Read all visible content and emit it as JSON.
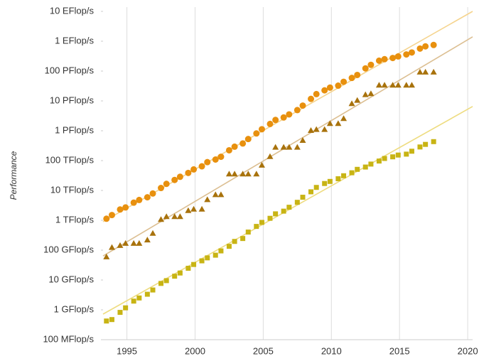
{
  "chart_data": {
    "type": "scatter",
    "log_y": true,
    "grid": "x",
    "ylabel": "Performance",
    "xlim": [
      1993.25,
      2020.36
    ],
    "xticks": [
      1995,
      2000,
      2005,
      2010,
      2015,
      2020
    ],
    "ylim": [
      0.1,
      10000000000
    ],
    "yticks": [
      {
        "value": 0.1,
        "label": "100 MFlop/s"
      },
      {
        "value": 1,
        "label": "1 GFlop/s"
      },
      {
        "value": 10,
        "label": "10 GFlop/s"
      },
      {
        "value": 100,
        "label": "100 GFlop/s"
      },
      {
        "value": 1000,
        "label": "1 TFlop/s"
      },
      {
        "value": 10000,
        "label": "10 TFlop/s"
      },
      {
        "value": 100000,
        "label": "100 TFlop/s"
      },
      {
        "value": 1000000,
        "label": "1 PFlop/s"
      },
      {
        "value": 10000000,
        "label": "10 PFlop/s"
      },
      {
        "value": 100000000,
        "label": "100 PFlop/s"
      },
      {
        "value": 1000000000,
        "label": "1 EFlop/s"
      },
      {
        "value": 10000000000,
        "label": "10 EFlop/s"
      }
    ],
    "x": [
      1993.5,
      1993.9,
      1994.5,
      1994.9,
      1995.5,
      1995.9,
      1996.5,
      1996.9,
      1997.5,
      1997.9,
      1998.5,
      1998.9,
      1999.5,
      1999.9,
      2000.5,
      2000.9,
      2001.5,
      2001.9,
      2002.5,
      2002.9,
      2003.5,
      2003.9,
      2004.5,
      2004.9,
      2005.5,
      2005.9,
      2006.5,
      2006.9,
      2007.5,
      2007.9,
      2008.5,
      2008.9,
      2009.5,
      2009.9,
      2010.5,
      2010.9,
      2011.5,
      2011.9,
      2012.5,
      2012.9,
      2013.5,
      2013.9,
      2014.5,
      2014.9,
      2015.5,
      2015.9,
      2016.5,
      2016.9,
      2017.5
    ],
    "series": [
      {
        "marker": "circle",
        "color": "#e8900e",
        "trend_color": "#f5d48e",
        "values": [
          1128,
          1500,
          2300,
          2700,
          3900,
          4800,
          5900,
          7900,
          12100,
          16600,
          22500,
          28700,
          38700,
          50600,
          64300,
          88900,
          108600,
          134500,
          222000,
          293000,
          375000,
          528000,
          813000,
          1127000,
          1690000,
          2300000,
          2790000,
          3530000,
          4920000,
          6970000,
          11700000,
          16900000,
          22600000,
          27900000,
          32400000,
          43700000,
          58900000,
          74200000,
          123000000,
          162000000,
          223000000,
          250000000,
          274000000,
          309000000,
          361000000,
          420000000,
          567000000,
          672000000,
          749000000
        ],
        "trend": {
          "x": [
            1993.25,
            2020.36
          ],
          "values": [
            900,
            10000000000
          ]
        }
      },
      {
        "marker": "triangle",
        "color": "#a8720c",
        "trend_color": "#dcbf92",
        "values": [
          59.7,
          124,
          143.4,
          170,
          170,
          170,
          220,
          368,
          1068,
          1338,
          1338,
          1338,
          2121,
          2379,
          2379,
          4938,
          7226,
          7226,
          35860,
          35860,
          35860,
          35860,
          35860,
          70720,
          136800,
          280600,
          280600,
          280600,
          280600,
          478200,
          1026000,
          1105000,
          1105000,
          1759000,
          1759000,
          2566000,
          8162000,
          10510000,
          16320000,
          17590000,
          33860000,
          33860000,
          33860000,
          33860000,
          33860000,
          33860000,
          93010000,
          93010000,
          93010000
        ],
        "trend": {
          "x": [
            1993.25,
            2020.36
          ],
          "values": [
            64,
            1400000000
          ]
        }
      },
      {
        "marker": "square",
        "color": "#c8b414",
        "trend_color": "#eedc80",
        "values": [
          0.422,
          0.472,
          0.822,
          1.166,
          1.961,
          2.498,
          3.33,
          4.62,
          7.67,
          9.51,
          13.39,
          17.12,
          24.73,
          33.1,
          43.82,
          55.1,
          67.78,
          94.3,
          134.3,
          195.8,
          245.1,
          403.4,
          624,
          850.6,
          1166,
          1646,
          2026,
          2737,
          4005,
          5929,
          9000,
          12640,
          17090,
          20050,
          24670,
          31120,
          39090,
          50940,
          60820,
          76500,
          96620,
          117800,
          133700,
          153400,
          164700,
          206300,
          286100,
          349300,
          432200
        ],
        "trend": {
          "x": [
            1993.25,
            2020.36
          ],
          "values": [
            0.72,
            6500000
          ]
        }
      }
    ]
  }
}
